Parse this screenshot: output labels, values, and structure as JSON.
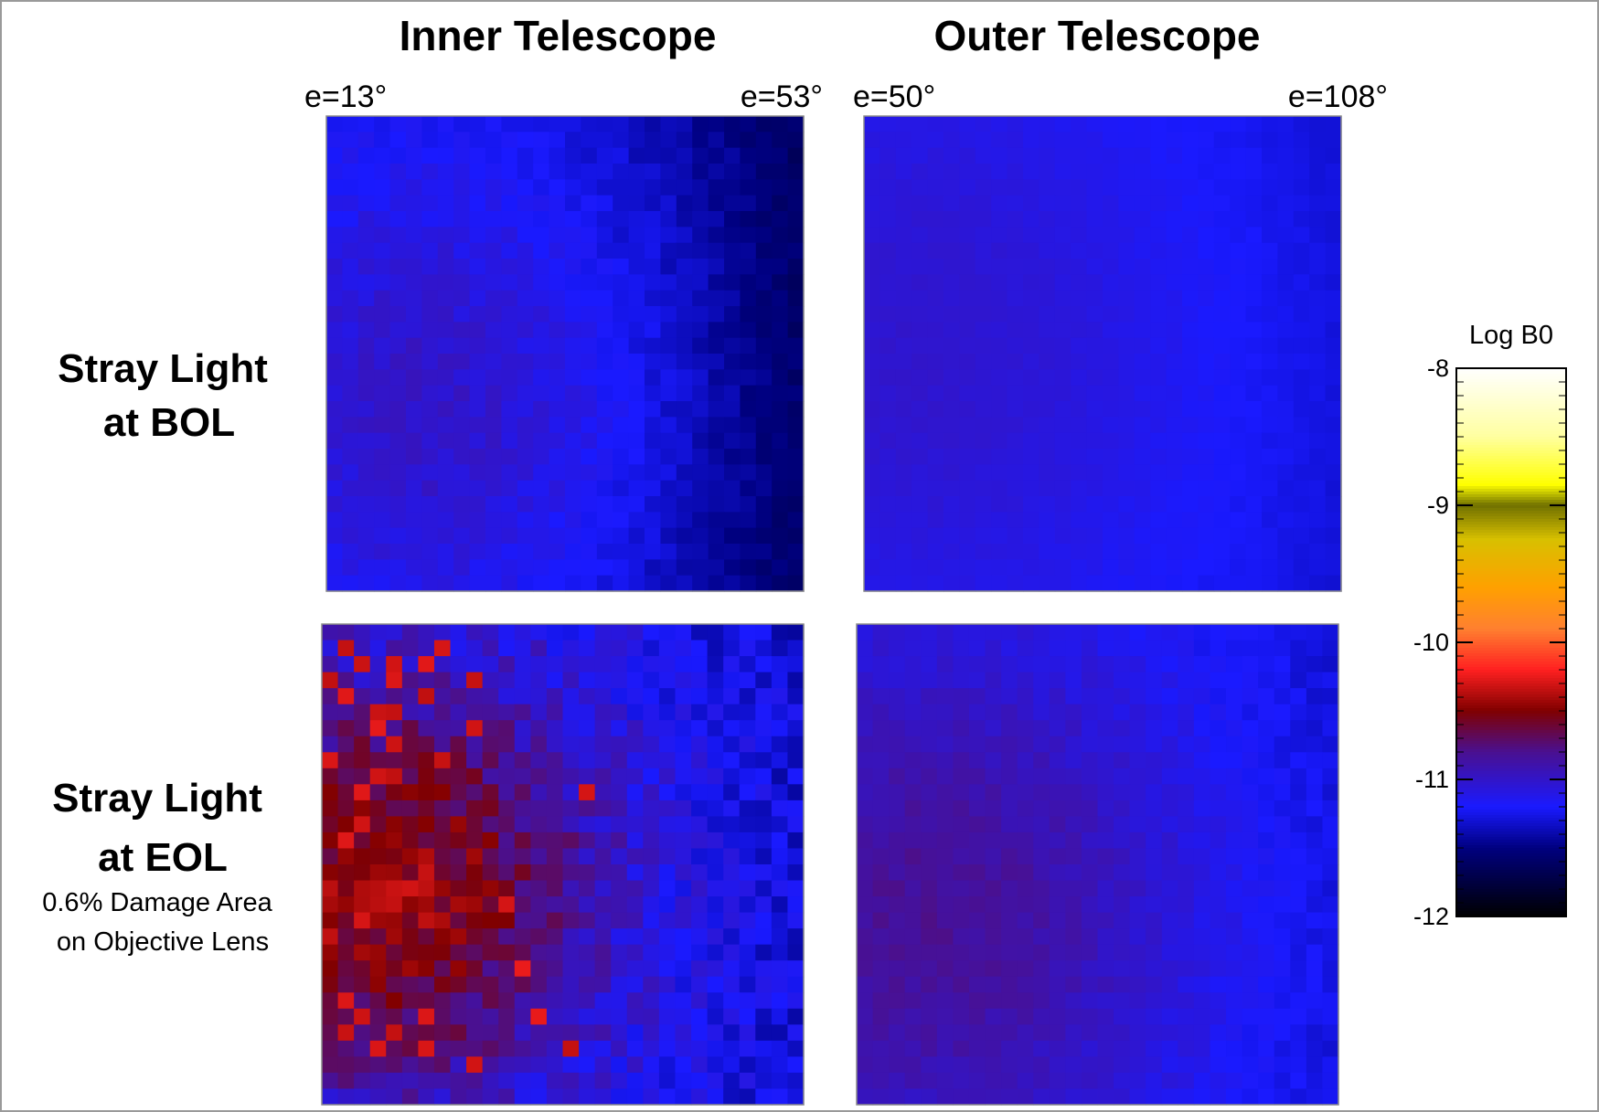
{
  "chart_data": {
    "type": "heatmap",
    "title": "",
    "column_titles": [
      "Inner Telescope",
      "Outer Telescope"
    ],
    "row_titles": [
      {
        "line1": "Stray Light",
        "line2": "at BOL",
        "note1": "",
        "note2": ""
      },
      {
        "line1": "Stray Light",
        "line2": "at EOL",
        "note1": "0.6% Damage Area",
        "note2": "on Objective Lens"
      }
    ],
    "elongation_labels": [
      {
        "left": "e=13°",
        "right": "e=53°"
      },
      {
        "left": "e=50°",
        "right": "e=108°"
      }
    ],
    "grid": {
      "rows": 30,
      "cols": 30
    },
    "panels": [
      {
        "name": "Inner Telescope / Stray Light at BOL",
        "base": -11.28,
        "peak": 0.28,
        "peak_x": 0.25,
        "peak_y": 0.6,
        "spread": 0.55,
        "right_falloff": 0.35,
        "noise": 0.12,
        "hot_spots": 0,
        "seed": 11
      },
      {
        "name": "Outer Telescope / Stray Light at BOL",
        "base": -11.24,
        "peak": 0.22,
        "peak_x": 0.1,
        "peak_y": 0.5,
        "spread": 0.7,
        "right_falloff": 0.08,
        "noise": 0.04,
        "hot_spots": 0,
        "seed": 23
      },
      {
        "name": "Inner Telescope / Stray Light at EOL",
        "base": -11.2,
        "peak": 0.75,
        "peak_x": 0.15,
        "peak_y": 0.55,
        "spread": 0.45,
        "right_falloff": 0.1,
        "noise": 0.3,
        "hot_spots": 38,
        "seed": 37
      },
      {
        "name": "Outer Telescope / Stray Light at EOL",
        "base": -11.22,
        "peak": 0.4,
        "peak_x": 0.15,
        "peak_y": 0.6,
        "spread": 0.6,
        "right_falloff": 0.1,
        "noise": 0.1,
        "hot_spots": 0,
        "seed": 51
      }
    ],
    "colorbar": {
      "title": "Log B0",
      "range": [
        -12,
        -8
      ],
      "ticks": [
        -8,
        -9,
        -10,
        -11,
        -12
      ],
      "colormap": [
        {
          "v": -12.0,
          "c": "#000000"
        },
        {
          "v": -11.5,
          "c": "#000080"
        },
        {
          "v": -11.2,
          "c": "#1a1aff"
        },
        {
          "v": -10.8,
          "c": "#4a1090"
        },
        {
          "v": -10.5,
          "c": "#800000"
        },
        {
          "v": -10.2,
          "c": "#ff2020"
        },
        {
          "v": -9.9,
          "c": "#ff8030"
        },
        {
          "v": -9.6,
          "c": "#ffa000"
        },
        {
          "v": -9.25,
          "c": "#d8c000"
        },
        {
          "v": -9.0,
          "c": "#707000"
        },
        {
          "v": -8.85,
          "c": "#ffff00"
        },
        {
          "v": -8.5,
          "c": "#ffffa0"
        },
        {
          "v": -8.0,
          "c": "#ffffff"
        }
      ]
    }
  }
}
